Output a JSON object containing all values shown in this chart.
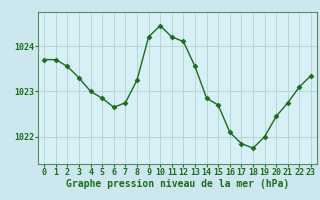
{
  "x": [
    0,
    1,
    2,
    3,
    4,
    5,
    6,
    7,
    8,
    9,
    10,
    11,
    12,
    13,
    14,
    15,
    16,
    17,
    18,
    19,
    20,
    21,
    22,
    23
  ],
  "y": [
    1023.7,
    1023.7,
    1023.55,
    1023.3,
    1023.0,
    1022.85,
    1022.65,
    1022.75,
    1023.25,
    1024.2,
    1024.45,
    1024.2,
    1024.1,
    1023.55,
    1022.85,
    1022.7,
    1022.1,
    1021.85,
    1021.75,
    1022.0,
    1022.45,
    1022.75,
    1023.1,
    1023.35
  ],
  "line_color": "#1a6e1a",
  "marker": "D",
  "markersize": 2.5,
  "linewidth": 1.0,
  "bg_color": "#cce8ee",
  "plot_bg_color": "#d6f0f5",
  "grid_color": "#b0c8cc",
  "xlabel": "Graphe pression niveau de la mer (hPa)",
  "xlabel_fontsize": 7,
  "yticks": [
    1022,
    1023,
    1024
  ],
  "ylim": [
    1021.4,
    1024.75
  ],
  "xlim": [
    -0.5,
    23.5
  ],
  "xticks": [
    0,
    1,
    2,
    3,
    4,
    5,
    6,
    7,
    8,
    9,
    10,
    11,
    12,
    13,
    14,
    15,
    16,
    17,
    18,
    19,
    20,
    21,
    22,
    23
  ],
  "tick_fontsize": 6,
  "tick_color": "#1a6e1a",
  "spine_color": "#5a8a5a"
}
